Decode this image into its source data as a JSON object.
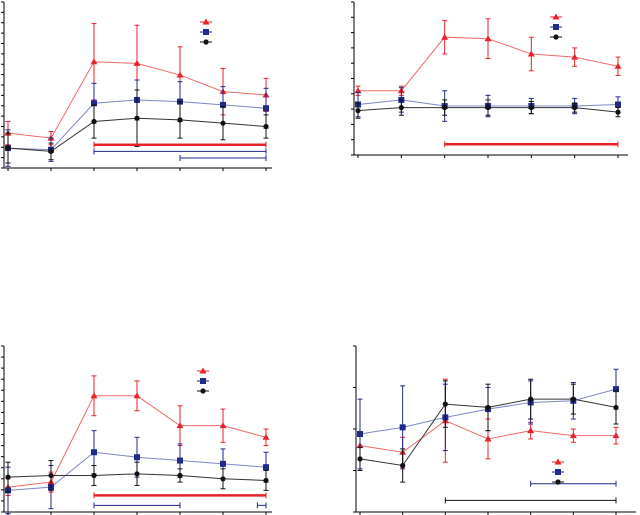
{
  "figure": {
    "colors": {
      "red": "#e8222a",
      "navy": "#1f2a8a",
      "black": "#111111",
      "red_line": "#f06a6a",
      "navy_line": "#7f86c9",
      "black_line": "#333333"
    }
  },
  "chart_data": [
    {
      "type": "line",
      "panel": "top-left",
      "title": "",
      "xlabel": "",
      "ylabel": "",
      "x": [
        1,
        2,
        3,
        4,
        5,
        6,
        7
      ],
      "ylim": [
        0,
        100
      ],
      "yticks": 17,
      "xticks": [
        1,
        2,
        3,
        4,
        5,
        6,
        7
      ],
      "grid": false,
      "legend": {
        "position": "top-right",
        "entries": [
          "",
          "",
          ""
        ]
      },
      "series": [
        {
          "color": "red",
          "marker": "triangle",
          "values": [
            21,
            18,
            64,
            63,
            56,
            46,
            44
          ],
          "errors": [
            7,
            4,
            23,
            23,
            17,
            14,
            10
          ]
        },
        {
          "color": "navy",
          "marker": "square",
          "values": [
            12,
            11,
            39,
            41,
            40,
            38,
            36
          ],
          "errors": [
            11,
            7,
            12,
            12,
            12,
            11,
            12
          ]
        },
        {
          "color": "black",
          "marker": "circle",
          "values": [
            12,
            10,
            28,
            30,
            29,
            27,
            25
          ],
          "errors": [
            9,
            5,
            10,
            17,
            11,
            10,
            7
          ]
        }
      ],
      "significance_bars": [
        {
          "color": "red",
          "from": 3,
          "to": 7,
          "level": 0.86,
          "thick": true
        },
        {
          "color": "navy",
          "from": 3,
          "to": 7,
          "level": 0.9
        },
        {
          "color": "navy",
          "from": 5,
          "to": 7,
          "level": 0.94
        }
      ]
    },
    {
      "type": "line",
      "panel": "top-right",
      "title": "",
      "xlabel": "",
      "ylabel": "",
      "x": [
        1,
        2,
        3,
        4,
        5,
        6,
        7
      ],
      "ylim": [
        0,
        100
      ],
      "yticks": 11,
      "xticks": [
        1,
        2,
        3,
        4,
        5,
        6,
        7
      ],
      "grid": false,
      "legend": {
        "position": "top-right",
        "entries": [
          "",
          "",
          ""
        ]
      },
      "series": [
        {
          "color": "red",
          "marker": "triangle",
          "values": [
            42,
            42,
            77,
            76,
            66,
            64,
            58
          ],
          "errors": [
            3,
            3,
            11,
            13,
            11,
            6,
            6
          ]
        },
        {
          "color": "navy",
          "marker": "square",
          "values": [
            33,
            36,
            32,
            32,
            32,
            32,
            33
          ],
          "errors": [
            8,
            8,
            10,
            7,
            5,
            5,
            5
          ]
        },
        {
          "color": "black",
          "marker": "circle",
          "values": [
            29,
            31,
            31,
            31,
            31,
            31,
            28
          ],
          "errors": [
            5,
            5,
            5,
            5,
            4,
            3,
            3
          ]
        }
      ],
      "significance_bars": [
        {
          "color": "red",
          "from": 3,
          "to": 7,
          "level": 0.93,
          "thick": true
        }
      ]
    },
    {
      "type": "line",
      "panel": "bottom-left",
      "title": "",
      "xlabel": "",
      "ylabel": "",
      "x": [
        1,
        2,
        3,
        4,
        5,
        6,
        7
      ],
      "ylim": [
        0,
        100
      ],
      "yticks": 16,
      "xticks": [
        1,
        2,
        3,
        4,
        5,
        6,
        7
      ],
      "grid": false,
      "legend": {
        "position": "top-right",
        "entries": [
          "",
          "",
          ""
        ]
      },
      "series": [
        {
          "color": "red",
          "marker": "triangle",
          "values": [
            15,
            18,
            70,
            70,
            52,
            52,
            45
          ],
          "errors": [
            5,
            6,
            12,
            9,
            12,
            10,
            5
          ]
        },
        {
          "color": "navy",
          "marker": "square",
          "values": [
            13,
            15,
            36,
            33,
            31,
            29,
            27
          ],
          "errors": [
            14,
            13,
            13,
            12,
            10,
            9,
            9
          ]
        },
        {
          "color": "black",
          "marker": "circle",
          "values": [
            21,
            22,
            22,
            23,
            22,
            20,
            19
          ],
          "errors": [
            9,
            9,
            6,
            7,
            4,
            6,
            6
          ]
        }
      ],
      "significance_bars": [
        {
          "color": "red",
          "from": 3,
          "to": 7,
          "level": 0.9,
          "thick": true
        },
        {
          "color": "navy",
          "from": 3,
          "to": 5,
          "level": 0.96
        },
        {
          "color": "navy",
          "from": 6.8,
          "to": 7,
          "level": 0.96
        }
      ]
    },
    {
      "type": "line",
      "panel": "bottom-right",
      "title": "",
      "xlabel": "",
      "ylabel": "",
      "x": [
        1,
        2,
        3,
        4,
        5,
        6,
        7
      ],
      "ylim": [
        0,
        100
      ],
      "yticks": 5,
      "xticks": [
        1,
        2,
        3,
        4,
        5,
        6,
        7
      ],
      "grid": false,
      "legend": {
        "position": "bottom-right",
        "entries": [
          "",
          "",
          ""
        ]
      },
      "series": [
        {
          "color": "red",
          "marker": "triangle",
          "values": [
            40,
            36,
            55,
            44,
            49,
            46,
            46
          ],
          "errors": [
            8,
            9,
            25,
            12,
            5,
            4,
            5
          ]
        },
        {
          "color": "navy",
          "marker": "square",
          "values": [
            47,
            51,
            57,
            62,
            66,
            67,
            74
          ],
          "errors": [
            21,
            25,
            20,
            13,
            13,
            11,
            12
          ]
        },
        {
          "color": "black",
          "marker": "circle",
          "values": [
            32,
            28,
            65,
            63,
            68,
            68,
            63
          ],
          "errors": [
            7,
            10,
            14,
            14,
            12,
            9,
            10
          ]
        }
      ],
      "significance_bars": [
        {
          "color": "navy",
          "from": 5,
          "to": 7,
          "level": 0.83
        },
        {
          "color": "black",
          "from": 3,
          "to": 7,
          "level": 0.93
        }
      ]
    }
  ]
}
